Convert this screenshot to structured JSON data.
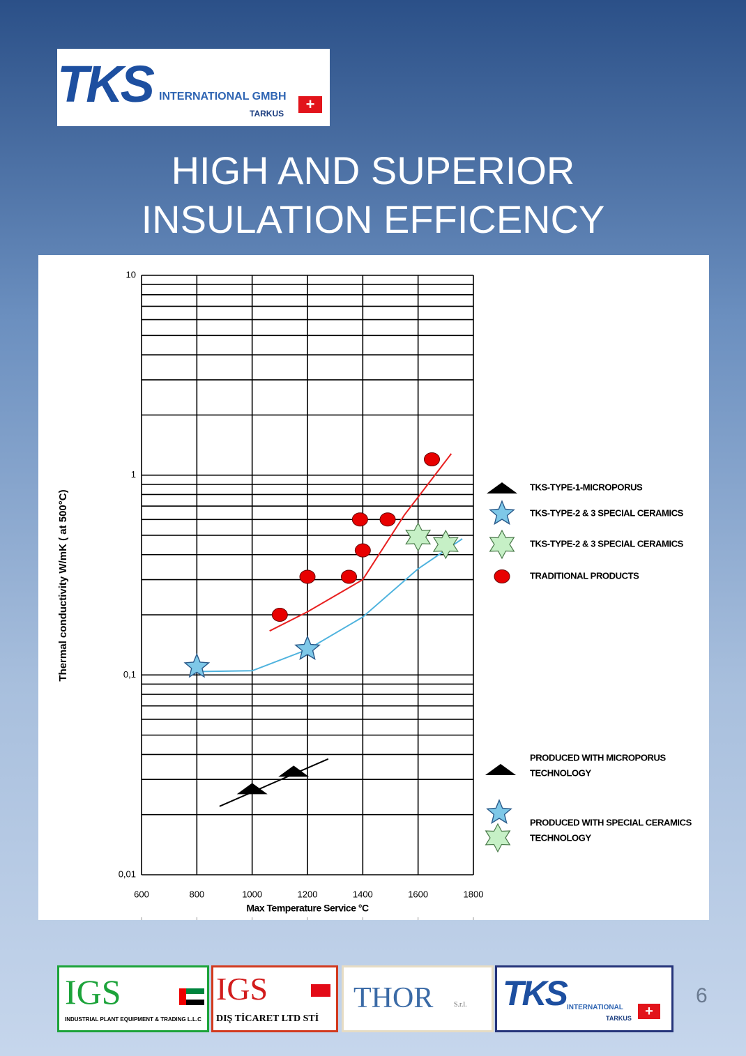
{
  "header": {
    "logo": {
      "name": "TKS",
      "company": "INTERNATIONAL GMBH",
      "brand": "TARKUS"
    }
  },
  "title": [
    "HIGH AND SUPERIOR",
    "INSULATION EFFICENCY"
  ],
  "chart_data": {
    "type": "scatter",
    "x_label": "Max Temperature Service °C",
    "y_label": "Thermal conductivity W/mK ( at 500°C)",
    "xlim": [
      600,
      1800
    ],
    "xticks": [
      600,
      800,
      1000,
      1200,
      1400,
      1600,
      1800
    ],
    "ylim": [
      0.01,
      10
    ],
    "log_y": true,
    "yticks": [
      {
        "value": 0.01,
        "label": "0,01"
      },
      {
        "value": 0.1,
        "label": "0,1"
      },
      1,
      10
    ],
    "yminor_ticks": [
      0.02,
      0.03,
      0.04,
      0.05,
      0.06,
      0.07,
      0.08,
      0.09,
      0.2,
      0.3,
      0.4,
      0.5,
      0.6,
      0.7,
      0.8,
      0.9,
      2,
      3,
      4,
      5,
      6,
      7,
      8,
      9
    ],
    "grid": true,
    "legend": "right",
    "series": [
      {
        "name": "TKS-TYPE-1-MICROPORUS",
        "marker": "triangle",
        "color": "#000000",
        "x": [
          1000,
          1150
        ],
        "values": [
          0.027,
          0.033
        ]
      },
      {
        "name": "TKS-TYPE-2 & 3 SPECIAL CERAMICS",
        "marker": "star",
        "color": "#7ec8e8",
        "x": [
          800,
          1200
        ],
        "values": [
          0.11,
          0.135
        ]
      },
      {
        "name": "TKS-TYPE-2 & 3 SPECIAL CERAMICS",
        "marker": "star6",
        "color": "#c6f0c6",
        "x": [
          1600,
          1700
        ],
        "values": [
          0.49,
          0.45
        ]
      },
      {
        "name": "TRADITIONAL PRODUCTS",
        "marker": "circle",
        "color": "#e80000",
        "x": [
          1100,
          1200,
          1350,
          1390,
          1400,
          1490,
          1650
        ],
        "values": [
          0.2,
          0.31,
          0.31,
          0.6,
          0.42,
          0.6,
          1.2
        ]
      }
    ],
    "fits": [
      {
        "color": "#000000",
        "x": [
          882,
          1275
        ],
        "values": [
          0.022,
          0.038
        ]
      },
      {
        "color": "#4fb3de",
        "x": [
          800,
          1000,
          1200,
          1400,
          1600,
          1760
        ],
        "values": [
          0.104,
          0.105,
          0.134,
          0.195,
          0.34,
          0.48
        ]
      },
      {
        "color": "#e82020",
        "x": [
          1063,
          1200,
          1400,
          1550,
          1720
        ],
        "values": [
          0.166,
          0.207,
          0.3,
          0.63,
          1.28
        ]
      }
    ],
    "annotations": [
      [
        "PRODUCED WITH MICROPORUS",
        "TECHNOLOGY"
      ],
      [
        "PRODUCED WITH SPECIAL CERAMICS",
        "TECHNOLOGY"
      ]
    ]
  },
  "footer": {
    "logos": [
      {
        "name": "IGS",
        "text": "INDUSTRIAL PLANT EQUIPMENT & TRADING L.L.C"
      },
      {
        "name": "IGS",
        "text": "DIŞ TİCARET LTD STİ"
      },
      {
        "name": "THOR",
        "text": "S.r.l."
      },
      {
        "name": "TKS",
        "text": "INTERNATIONAL",
        "brand": "TARKUS"
      }
    ],
    "page": "6"
  }
}
